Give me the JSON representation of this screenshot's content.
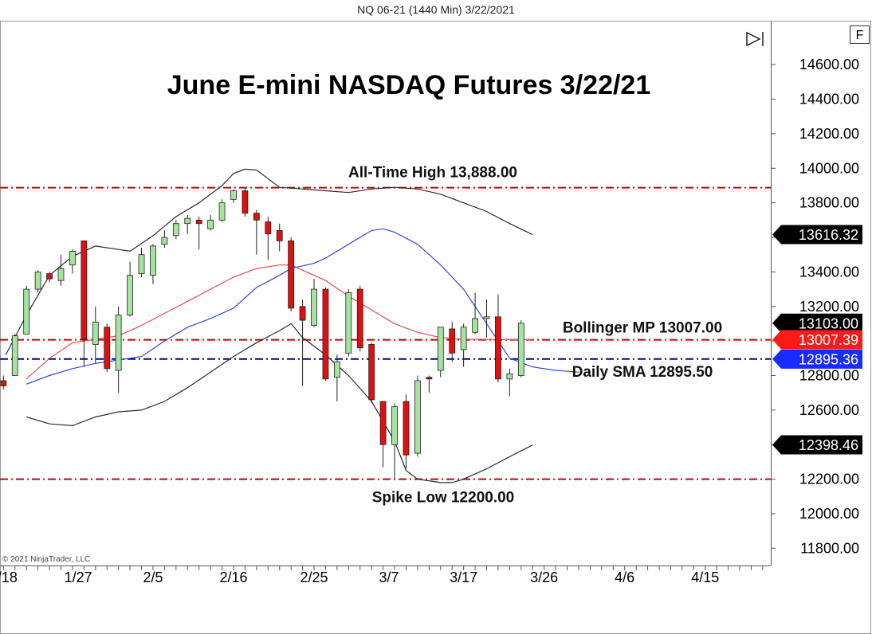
{
  "header": {
    "instrument_line": "NQ 06-21 (1440 Min)  3/22/2021",
    "f_button": "F",
    "copyright": "© 2021 NinjaTrader, LLC"
  },
  "chart_data": {
    "type": "candlestick",
    "title": "June E-mini NASDAQ Futures 3/22/21",
    "ylim": [
      11700,
      14850
    ],
    "y_ticks": [
      11800,
      12000,
      12200,
      12400,
      12600,
      12800,
      13000,
      13200,
      13400,
      13600,
      13800,
      14000,
      14200,
      14400,
      14600
    ],
    "y_tick_labels": [
      "11800.00",
      "12000.00",
      "12200.00",
      "12400.00",
      "12600.00",
      "12800.00",
      "13000.00",
      "13200.00",
      "13400.00",
      "13600.00",
      "13800.00",
      "14000.00",
      "14200.00",
      "14400.00",
      "14600.00"
    ],
    "x_tick_labels": [
      "1/18",
      "1/27",
      "2/5",
      "2/16",
      "2/25",
      "3/7",
      "3/17",
      "3/26",
      "4/6",
      "4/15"
    ],
    "x_tick_positions": [
      0,
      6.5,
      13,
      20,
      27,
      33.5,
      40,
      47,
      54,
      61
    ],
    "x_range": [
      -0.3,
      66.7
    ],
    "candles": [
      {
        "o": 12770,
        "h": 12800,
        "l": 12720,
        "c": 12740
      },
      {
        "o": 12800,
        "h": 13040,
        "l": 12800,
        "c": 13030
      },
      {
        "o": 13040,
        "h": 13320,
        "l": 13040,
        "c": 13300
      },
      {
        "o": 13300,
        "h": 13410,
        "l": 13280,
        "c": 13400
      },
      {
        "o": 13390,
        "h": 13400,
        "l": 13340,
        "c": 13360
      },
      {
        "o": 13350,
        "h": 13500,
        "l": 13320,
        "c": 13420
      },
      {
        "o": 13440,
        "h": 13530,
        "l": 13390,
        "c": 13520
      },
      {
        "o": 13580,
        "h": 13580,
        "l": 12850,
        "c": 13010
      },
      {
        "o": 12980,
        "h": 13200,
        "l": 12870,
        "c": 13110
      },
      {
        "o": 13080,
        "h": 13100,
        "l": 12820,
        "c": 12840
      },
      {
        "o": 12830,
        "h": 13200,
        "l": 12700,
        "c": 13150
      },
      {
        "o": 13150,
        "h": 13460,
        "l": 13140,
        "c": 13380
      },
      {
        "o": 13390,
        "h": 13540,
        "l": 13370,
        "c": 13500
      },
      {
        "o": 13380,
        "h": 13560,
        "l": 13330,
        "c": 13550
      },
      {
        "o": 13560,
        "h": 13640,
        "l": 13540,
        "c": 13600
      },
      {
        "o": 13610,
        "h": 13700,
        "l": 13590,
        "c": 13680
      },
      {
        "o": 13680,
        "h": 13730,
        "l": 13620,
        "c": 13710
      },
      {
        "o": 13700,
        "h": 13720,
        "l": 13530,
        "c": 13680
      },
      {
        "o": 13650,
        "h": 13730,
        "l": 13640,
        "c": 13700
      },
      {
        "o": 13700,
        "h": 13820,
        "l": 13690,
        "c": 13800
      },
      {
        "o": 13820,
        "h": 13880,
        "l": 13800,
        "c": 13870
      },
      {
        "o": 13870,
        "h": 13888,
        "l": 13720,
        "c": 13740
      },
      {
        "o": 13740,
        "h": 13760,
        "l": 13500,
        "c": 13700
      },
      {
        "o": 13690,
        "h": 13720,
        "l": 13470,
        "c": 13620
      },
      {
        "o": 13640,
        "h": 13680,
        "l": 13520,
        "c": 13580
      },
      {
        "o": 13580,
        "h": 13600,
        "l": 13170,
        "c": 13190
      },
      {
        "o": 13200,
        "h": 13240,
        "l": 12740,
        "c": 13120
      },
      {
        "o": 13090,
        "h": 13360,
        "l": 13080,
        "c": 13300
      },
      {
        "o": 13300,
        "h": 13310,
        "l": 12770,
        "c": 12780
      },
      {
        "o": 12790,
        "h": 12920,
        "l": 12650,
        "c": 12880
      },
      {
        "o": 12930,
        "h": 13300,
        "l": 12910,
        "c": 13280
      },
      {
        "o": 13300,
        "h": 13320,
        "l": 12940,
        "c": 12960
      },
      {
        "o": 12980,
        "h": 12990,
        "l": 12640,
        "c": 12660
      },
      {
        "o": 12650,
        "h": 12650,
        "l": 12270,
        "c": 12400
      },
      {
        "o": 12400,
        "h": 12640,
        "l": 12200,
        "c": 12620
      },
      {
        "o": 12650,
        "h": 12690,
        "l": 12260,
        "c": 12340
      },
      {
        "o": 12350,
        "h": 12800,
        "l": 12330,
        "c": 12770
      },
      {
        "o": 12790,
        "h": 12800,
        "l": 12700,
        "c": 12780
      },
      {
        "o": 12830,
        "h": 13080,
        "l": 12790,
        "c": 13080
      },
      {
        "o": 13070,
        "h": 13110,
        "l": 12880,
        "c": 12930
      },
      {
        "o": 12950,
        "h": 13100,
        "l": 12850,
        "c": 13080
      },
      {
        "o": 13050,
        "h": 13280,
        "l": 13040,
        "c": 13130
      },
      {
        "o": 13130,
        "h": 13240,
        "l": 13020,
        "c": 13140
      },
      {
        "o": 13140,
        "h": 13270,
        "l": 12760,
        "c": 12780
      },
      {
        "o": 12780,
        "h": 12840,
        "l": 12680,
        "c": 12810
      },
      {
        "o": 12800,
        "h": 13120,
        "l": 12790,
        "c": 13103
      }
    ],
    "bollinger_upper": [
      [
        0.2,
        12920
      ],
      [
        2,
        13150
      ],
      [
        4,
        13380
      ],
      [
        6,
        13490
      ],
      [
        8,
        13550
      ],
      [
        10,
        13530
      ],
      [
        11,
        13520
      ],
      [
        13,
        13610
      ],
      [
        15,
        13720
      ],
      [
        17,
        13800
      ],
      [
        19,
        13900
      ],
      [
        20,
        13970
      ],
      [
        21,
        13995
      ],
      [
        22,
        13990
      ],
      [
        23,
        13940
      ],
      [
        24,
        13890
      ],
      [
        26,
        13880
      ],
      [
        28,
        13870
      ],
      [
        30,
        13860
      ],
      [
        32,
        13880
      ],
      [
        34,
        13890
      ],
      [
        36,
        13880
      ],
      [
        38,
        13850
      ],
      [
        40,
        13800
      ],
      [
        42,
        13750
      ],
      [
        44,
        13680
      ],
      [
        46,
        13616
      ]
    ],
    "bollinger_middle": [
      [
        2,
        12780
      ],
      [
        4,
        12900
      ],
      [
        6,
        12990
      ],
      [
        8,
        13010
      ],
      [
        10,
        13030
      ],
      [
        12,
        13090
      ],
      [
        14,
        13160
      ],
      [
        16,
        13230
      ],
      [
        18,
        13300
      ],
      [
        20,
        13370
      ],
      [
        22,
        13420
      ],
      [
        24,
        13440
      ],
      [
        25,
        13440
      ],
      [
        26,
        13410
      ],
      [
        28,
        13350
      ],
      [
        30,
        13260
      ],
      [
        32,
        13180
      ],
      [
        34,
        13100
      ],
      [
        36,
        13050
      ],
      [
        38,
        13020
      ],
      [
        40,
        13010
      ],
      [
        42,
        13010
      ],
      [
        44,
        13008
      ],
      [
        46,
        13007
      ]
    ],
    "bollinger_lower": [
      [
        2,
        12560
      ],
      [
        4,
        12520
      ],
      [
        6,
        12510
      ],
      [
        8,
        12560
      ],
      [
        10,
        12590
      ],
      [
        12,
        12600
      ],
      [
        14,
        12650
      ],
      [
        16,
        12730
      ],
      [
        18,
        12820
      ],
      [
        20,
        12910
      ],
      [
        22,
        12990
      ],
      [
        24,
        13060
      ],
      [
        25,
        13100
      ],
      [
        26,
        13020
      ],
      [
        28,
        12920
      ],
      [
        30,
        12800
      ],
      [
        32,
        12650
      ],
      [
        34,
        12420
      ],
      [
        35,
        12250
      ],
      [
        36,
        12200
      ],
      [
        38,
        12180
      ],
      [
        39,
        12180
      ],
      [
        40,
        12200
      ],
      [
        42,
        12260
      ],
      [
        44,
        12330
      ],
      [
        46,
        12398
      ]
    ],
    "daily_sma": [
      [
        2,
        12750
      ],
      [
        4,
        12800
      ],
      [
        6,
        12840
      ],
      [
        8,
        12870
      ],
      [
        10,
        12890
      ],
      [
        12,
        12910
      ],
      [
        14,
        13000
      ],
      [
        16,
        13080
      ],
      [
        18,
        13130
      ],
      [
        20,
        13190
      ],
      [
        22,
        13310
      ],
      [
        24,
        13380
      ],
      [
        25,
        13420
      ],
      [
        27,
        13450
      ],
      [
        28,
        13480
      ],
      [
        30,
        13560
      ],
      [
        32,
        13640
      ],
      [
        33,
        13650
      ],
      [
        34,
        13630
      ],
      [
        36,
        13560
      ],
      [
        38,
        13440
      ],
      [
        40,
        13300
      ],
      [
        42,
        13100
      ],
      [
        44,
        12900
      ],
      [
        46,
        12850
      ],
      [
        48,
        12830
      ],
      [
        50,
        12820
      ]
    ],
    "levels": [
      {
        "label": "All-Time High 13,888.00",
        "value": 13888,
        "color": "#cc0000"
      },
      {
        "label": "Bollinger MP 13007.00",
        "value": 13007,
        "color": "#cc0000"
      },
      {
        "label": "Daily SMA 12895.50",
        "value": 12895.5,
        "color": "#0000aa"
      },
      {
        "label": "Spike Low 12200.00",
        "value": 12200,
        "color": "#cc0000"
      }
    ],
    "price_tags": [
      {
        "text": "13616.32",
        "value": 13616.32,
        "color": "#000000"
      },
      {
        "text": "13103.00",
        "value": 13103,
        "color": "#000000"
      },
      {
        "text": "13007.39",
        "value": 13007.39,
        "color": "#ff1a1a"
      },
      {
        "text": "12895.36",
        "value": 12895.36,
        "color": "#1a2bff"
      },
      {
        "text": "12398.46",
        "value": 12398.46,
        "color": "#000000"
      }
    ],
    "colors": {
      "up_candle": "#a6e3a1",
      "down_candle": "#e01010",
      "bollinger_band": "#2b2b2b",
      "bollinger_mid": "#e05050",
      "sma": "#3344dd"
    }
  }
}
